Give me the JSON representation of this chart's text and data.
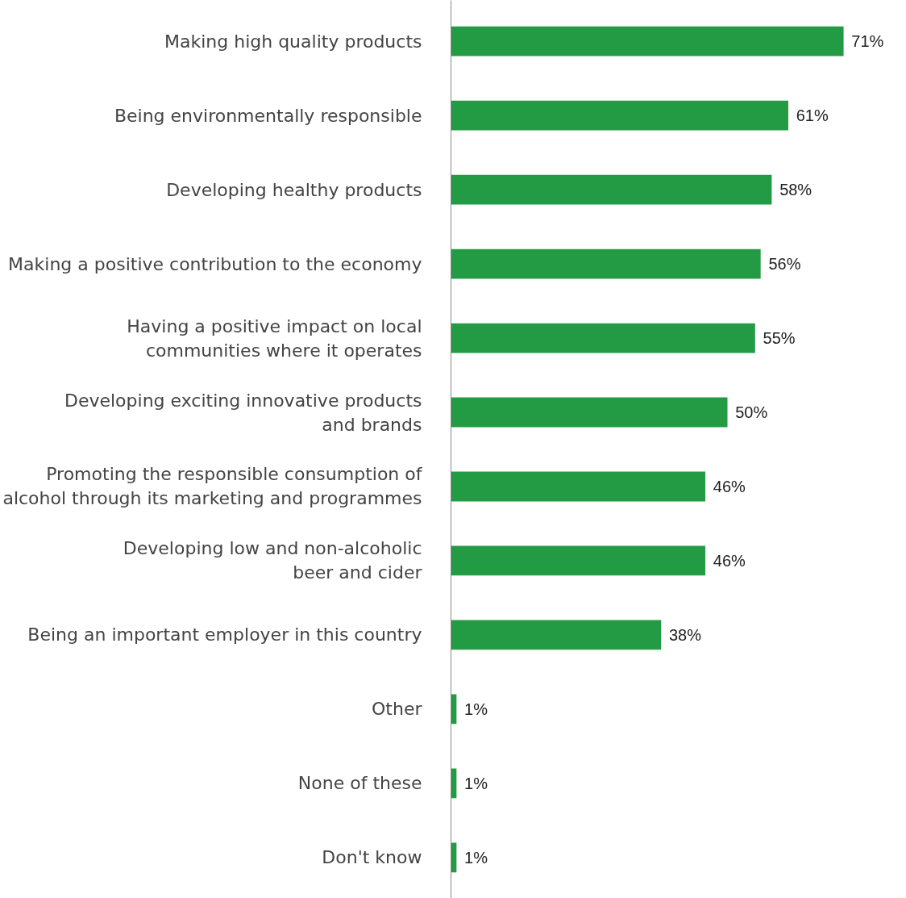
{
  "chart_data": {
    "type": "bar",
    "orientation": "horizontal",
    "categories": [
      "Making high quality products",
      "Being environmentally responsible",
      "Developing healthy products",
      "Making a positive contribution to the economy",
      "Having a positive impact on local\ncommunities where it operates",
      "Developing exciting innovative products\nand brands",
      "Promoting the responsible consumption of\nalcohol through its marketing and programmes",
      "Developing low and non-alcoholic\nbeer and cider",
      "Being an important employer in this country",
      "Other",
      "None of these",
      "Don't know"
    ],
    "values": [
      71,
      61,
      58,
      56,
      55,
      50,
      46,
      46,
      38,
      1,
      1,
      1
    ],
    "color": "#239b45",
    "data_labels": true,
    "value_labels": [
      "71%",
      "61%",
      "58%",
      "56%",
      "55%",
      "50%",
      "46%",
      "46%",
      "38%",
      "1%",
      "1%",
      "1%"
    ],
    "stacked": false
  }
}
